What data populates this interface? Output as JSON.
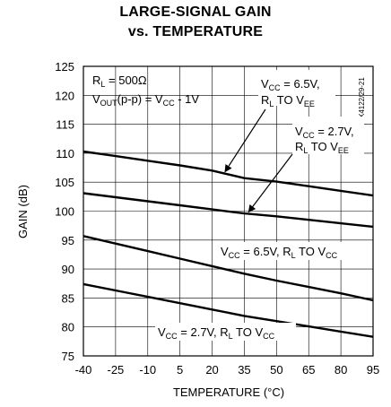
{
  "chart_data": {
    "type": "line",
    "title": "LARGE-SIGNAL GAIN",
    "subtitle": "vs. TEMPERATURE",
    "xlabel": "TEMPERATURE (°C)",
    "ylabel": "GAIN (dB)",
    "xlim": [
      -40,
      95
    ],
    "ylim": [
      75,
      125
    ],
    "x_ticks": [
      "-40",
      "-25",
      "-10",
      "5",
      "20",
      "35",
      "50",
      "65",
      "80",
      "95"
    ],
    "y_ticks": [
      "125",
      "120",
      "115",
      "110",
      "105",
      "100",
      "95",
      "90",
      "85",
      "80",
      "75"
    ],
    "grid": true,
    "conditions": {
      "line1": "R",
      "line1_sub": "L",
      "line1_rest": " = 500Ω",
      "line2": "V",
      "line2_sub": "OUT",
      "line2_rest": "(p-p) = V",
      "line2_sub2": "CC",
      "line2_rest2": " - 1V"
    },
    "part_number": "MAX4122/29-21",
    "series": [
      {
        "name": "VCC = 6.5V, RL TO VEE",
        "x": [
          -40,
          -25,
          -10,
          5,
          20,
          35,
          50,
          65,
          80,
          95
        ],
        "y": [
          110.3,
          109.5,
          108.7,
          107.9,
          107.0,
          105.7,
          105.1,
          104.3,
          103.5,
          102.7
        ]
      },
      {
        "name": "VCC = 2.7V, RL TO VEE",
        "x": [
          -40,
          -25,
          -10,
          5,
          20,
          35,
          50,
          65,
          80,
          95
        ],
        "y": [
          103.1,
          102.4,
          101.7,
          101.0,
          100.3,
          99.6,
          99.1,
          98.5,
          97.9,
          97.3
        ]
      },
      {
        "name": "VCC = 6.5V, RL TO VCC",
        "x": [
          -40,
          -25,
          -10,
          5,
          20,
          35,
          50,
          65,
          80,
          95
        ],
        "y": [
          95.7,
          94.4,
          93.1,
          91.8,
          90.5,
          89.2,
          88.0,
          86.9,
          85.8,
          84.6
        ]
      },
      {
        "name": "VCC = 2.7V, RL TO VCC",
        "x": [
          -40,
          -25,
          -10,
          5,
          20,
          35,
          50,
          65,
          80,
          95
        ],
        "y": [
          87.4,
          86.3,
          85.2,
          84.1,
          83.0,
          81.9,
          81.0,
          80.1,
          79.2,
          78.3
        ]
      }
    ],
    "labels": [
      {
        "v": "V",
        "vsub": "CC",
        "a": " = 6.5V,",
        "r": "R",
        "rsub": "L",
        "b": " TO V",
        "tsub": "EE"
      },
      {
        "v": "V",
        "vsub": "CC",
        "a": " = 2.7V,",
        "r": "R",
        "rsub": "L",
        "b": " TO V",
        "tsub": "EE"
      },
      {
        "v": "V",
        "vsub": "CC",
        "a": " = 6.5V, ",
        "r": "R",
        "rsub": "L",
        "b": " TO V",
        "tsub": "CC"
      },
      {
        "v": "V",
        "vsub": "CC",
        "a": " = 2.7V, ",
        "r": "R",
        "rsub": "L",
        "b": " TO V",
        "tsub": "CC"
      }
    ]
  }
}
